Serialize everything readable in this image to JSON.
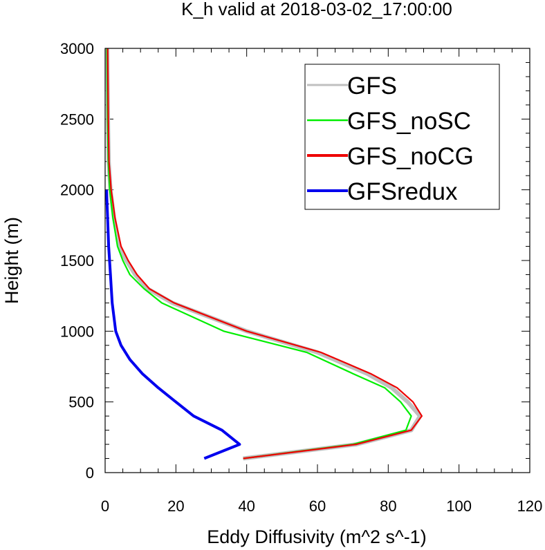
{
  "chart_data": {
    "type": "line",
    "title": "K_h valid at 2018-03-02_17:00:00",
    "xlabel": "Eddy Diffusivity (m^2 s^-1)",
    "ylabel": "Height (m)",
    "xlim": [
      0,
      120
    ],
    "ylim": [
      0,
      3000
    ],
    "xticks": [
      0,
      20,
      40,
      60,
      80,
      100,
      120
    ],
    "yticks": [
      0,
      500,
      1000,
      1500,
      2000,
      2500,
      3000
    ],
    "xtick_labels": [
      "0",
      "20",
      "40",
      "60",
      "80",
      "100",
      "120"
    ],
    "ytick_labels": [
      "0",
      "500",
      "1000",
      "1500",
      "2000",
      "2500",
      "3000"
    ],
    "grid": false,
    "legend_position": "top-right",
    "series": [
      {
        "name": "GFS",
        "color": "#c0c0c0",
        "points": [
          [
            39,
            100
          ],
          [
            71,
            200
          ],
          [
            86.5,
            300
          ],
          [
            89,
            400
          ],
          [
            85.5,
            500
          ],
          [
            81,
            600
          ],
          [
            74,
            700
          ],
          [
            60,
            850
          ],
          [
            40,
            1000
          ],
          [
            19,
            1200
          ],
          [
            12,
            1300
          ],
          [
            8.5,
            1400
          ],
          [
            6,
            1500
          ],
          [
            4,
            1600
          ],
          [
            2.5,
            1800
          ],
          [
            1.5,
            2000
          ],
          [
            1,
            2200
          ],
          [
            0.8,
            2500
          ],
          [
            0.6,
            3000
          ]
        ]
      },
      {
        "name": "GFS_noSC",
        "color": "#00ee00",
        "points": [
          [
            39,
            100
          ],
          [
            70,
            200
          ],
          [
            85,
            300
          ],
          [
            86.5,
            400
          ],
          [
            83.5,
            500
          ],
          [
            79,
            600
          ],
          [
            70,
            700
          ],
          [
            57,
            850
          ],
          [
            33.5,
            1000
          ],
          [
            16,
            1200
          ],
          [
            11,
            1300
          ],
          [
            7,
            1400
          ],
          [
            5,
            1500
          ],
          [
            3.5,
            1600
          ],
          [
            2.2,
            1800
          ],
          [
            1.3,
            2000
          ],
          [
            0.9,
            2200
          ],
          [
            0.7,
            2500
          ],
          [
            0.5,
            3000
          ]
        ]
      },
      {
        "name": "GFS_noCG",
        "color": "#ee0000",
        "points": [
          [
            39,
            100
          ],
          [
            71,
            200
          ],
          [
            86.5,
            300
          ],
          [
            89.5,
            400
          ],
          [
            87,
            500
          ],
          [
            82.5,
            600
          ],
          [
            75,
            700
          ],
          [
            61,
            850
          ],
          [
            40,
            1000
          ],
          [
            19.5,
            1200
          ],
          [
            12.5,
            1300
          ],
          [
            9,
            1400
          ],
          [
            6.5,
            1500
          ],
          [
            4.5,
            1600
          ],
          [
            2.8,
            1800
          ],
          [
            1.7,
            2000
          ],
          [
            1.1,
            2200
          ],
          [
            0.9,
            2500
          ],
          [
            0.7,
            3000
          ]
        ]
      },
      {
        "name": "GFSredux",
        "color": "#0000ee",
        "points": [
          [
            28,
            100
          ],
          [
            38,
            200
          ],
          [
            33,
            300
          ],
          [
            25,
            400
          ],
          [
            20,
            500
          ],
          [
            15,
            600
          ],
          [
            10.5,
            700
          ],
          [
            7,
            800
          ],
          [
            4.5,
            900
          ],
          [
            3,
            1000
          ],
          [
            2,
            1200
          ],
          [
            1.5,
            1400
          ],
          [
            1,
            1600
          ],
          [
            0.7,
            1800
          ],
          [
            0.4,
            2000
          ]
        ]
      }
    ]
  }
}
